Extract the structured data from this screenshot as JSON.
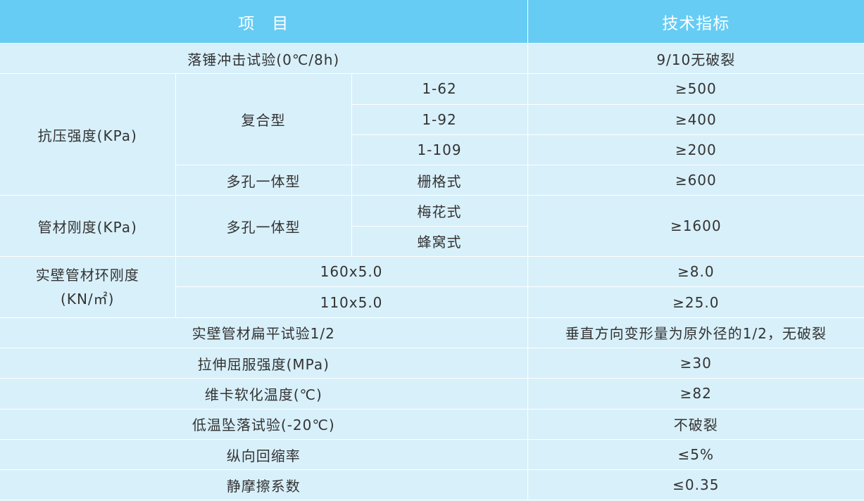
{
  "header": {
    "item": "项　目",
    "spec": "技术指标"
  },
  "rows": {
    "drop_hammer": {
      "label": "落锤冲击试验(0℃/8h)",
      "value": "9/10无破裂"
    },
    "compressive": {
      "label": "抗压强度(KPa)",
      "composite": "复合型",
      "r1": {
        "spec": "1-62",
        "value": "≥500"
      },
      "r2": {
        "spec": "1-92",
        "value": "≥400"
      },
      "r3": {
        "spec": "1-109",
        "value": "≥200"
      },
      "multi": "多孔一体型",
      "r4": {
        "spec": "栅格式",
        "value": "≥600"
      }
    },
    "stiffness": {
      "label": "管材刚度(KPa)",
      "multi": "多孔一体型",
      "r1": "梅花式",
      "r2": "蜂窝式",
      "value": "≥1600"
    },
    "ring": {
      "label1": "实壁管材环刚度",
      "label2": "(KN/㎡)",
      "r1": {
        "spec": "160x5.0",
        "value": "≥8.0"
      },
      "r2": {
        "spec": "110x5.0",
        "value": "≥25.0"
      }
    },
    "flatten": {
      "label": "实壁管材扁平试验1/2",
      "value": "垂直方向变形量为原外径的1/2，无破裂"
    },
    "tensile": {
      "label": "拉伸屈服强度(MPa)",
      "value": "≥30"
    },
    "vicat": {
      "label": "维卡软化温度(℃)",
      "value": "≥82"
    },
    "low_temp": {
      "label": "低温坠落试验(-20℃)",
      "value": "不破裂"
    },
    "shrink": {
      "label": "纵向回缩率",
      "value": "≤5%"
    },
    "friction": {
      "label": "静摩擦系数",
      "value": "≤0.35"
    }
  },
  "colors": {
    "header_bg": "#66ccf4",
    "body_bg": "#d8f0fa",
    "grid": "#ffffff",
    "text": "#333333"
  }
}
